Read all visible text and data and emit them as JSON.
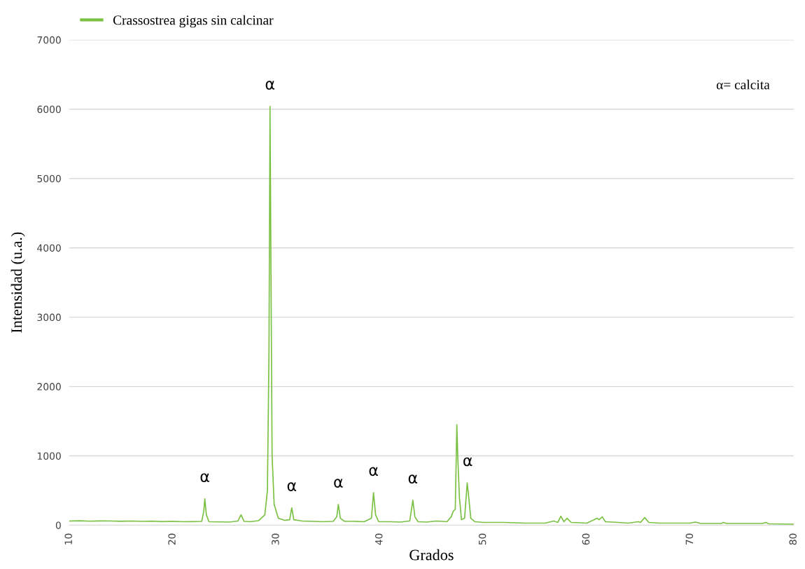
{
  "chart_data": {
    "type": "line",
    "xlabel": "Grados",
    "ylabel": "Intensidad (u.a.)",
    "xlim": [
      10,
      80
    ],
    "xticks": [
      10,
      20,
      30,
      40,
      50,
      60,
      70,
      80
    ],
    "ylim": [
      0,
      7000
    ],
    "yticks": [
      0,
      1000,
      2000,
      3000,
      4000,
      5000,
      6000,
      7000
    ],
    "grid": "y",
    "legend": "top left",
    "marker": "none",
    "line_style": "solid",
    "series": [
      {
        "name": "Crassostrea gigas sin calcinar",
        "color": "#7ac143",
        "x": [
          10,
          11,
          12,
          13,
          14,
          15,
          16,
          17,
          18,
          19,
          20,
          21,
          22,
          22.8,
          23.0,
          23.1,
          23.25,
          23.5,
          24.5,
          25.5,
          26.3,
          26.6,
          26.9,
          27.5,
          28.3,
          28.9,
          29.15,
          29.3,
          29.4,
          29.5,
          29.6,
          29.8,
          30.2,
          30.8,
          31.3,
          31.5,
          31.7,
          32.5,
          33.5,
          34.5,
          35.5,
          35.85,
          36.0,
          36.2,
          36.6,
          37.5,
          38.5,
          39.2,
          39.4,
          39.6,
          39.9,
          41,
          42,
          42.9,
          43.2,
          43.4,
          43.7,
          44.5,
          45.5,
          46.5,
          46.9,
          47.1,
          47.3,
          47.45,
          47.55,
          47.7,
          47.9,
          48.2,
          48.45,
          48.6,
          48.8,
          49.2,
          50,
          52,
          54,
          56,
          56.8,
          57.2,
          57.5,
          57.8,
          58.1,
          58.5,
          60,
          60.6,
          61.0,
          61.2,
          61.5,
          61.8,
          63,
          64,
          65,
          65.2,
          65.6,
          66,
          67,
          70,
          70.5,
          71,
          73,
          73.2,
          73.5,
          77,
          77.3,
          77.6,
          80
        ],
        "values": [
          60,
          65,
          58,
          62,
          60,
          57,
          60,
          55,
          58,
          52,
          55,
          50,
          52,
          55,
          200,
          380,
          150,
          50,
          48,
          45,
          60,
          150,
          55,
          50,
          65,
          150,
          500,
          2500,
          6040,
          3500,
          1000,
          300,
          100,
          70,
          80,
          250,
          80,
          60,
          55,
          50,
          55,
          120,
          300,
          100,
          55,
          55,
          50,
          100,
          470,
          150,
          50,
          50,
          45,
          60,
          360,
          120,
          50,
          45,
          60,
          50,
          120,
          200,
          230,
          1450,
          950,
          400,
          80,
          100,
          610,
          400,
          100,
          50,
          40,
          40,
          30,
          30,
          60,
          40,
          130,
          50,
          100,
          40,
          30,
          70,
          100,
          80,
          120,
          50,
          40,
          30,
          50,
          40,
          110,
          40,
          30,
          30,
          45,
          25,
          25,
          40,
          25,
          25,
          40,
          20,
          15
        ]
      }
    ],
    "annotations": [
      {
        "text": "α",
        "x": 23.1,
        "y": 380
      },
      {
        "text": "α",
        "x": 29.4,
        "y": 6040
      },
      {
        "text": "α",
        "x": 31.5,
        "y": 250
      },
      {
        "text": "α",
        "x": 36.0,
        "y": 300
      },
      {
        "text": "α",
        "x": 39.4,
        "y": 470
      },
      {
        "text": "α",
        "x": 43.2,
        "y": 360
      },
      {
        "text": "α",
        "x": 48.5,
        "y": 610
      },
      "α= calcita"
    ]
  }
}
